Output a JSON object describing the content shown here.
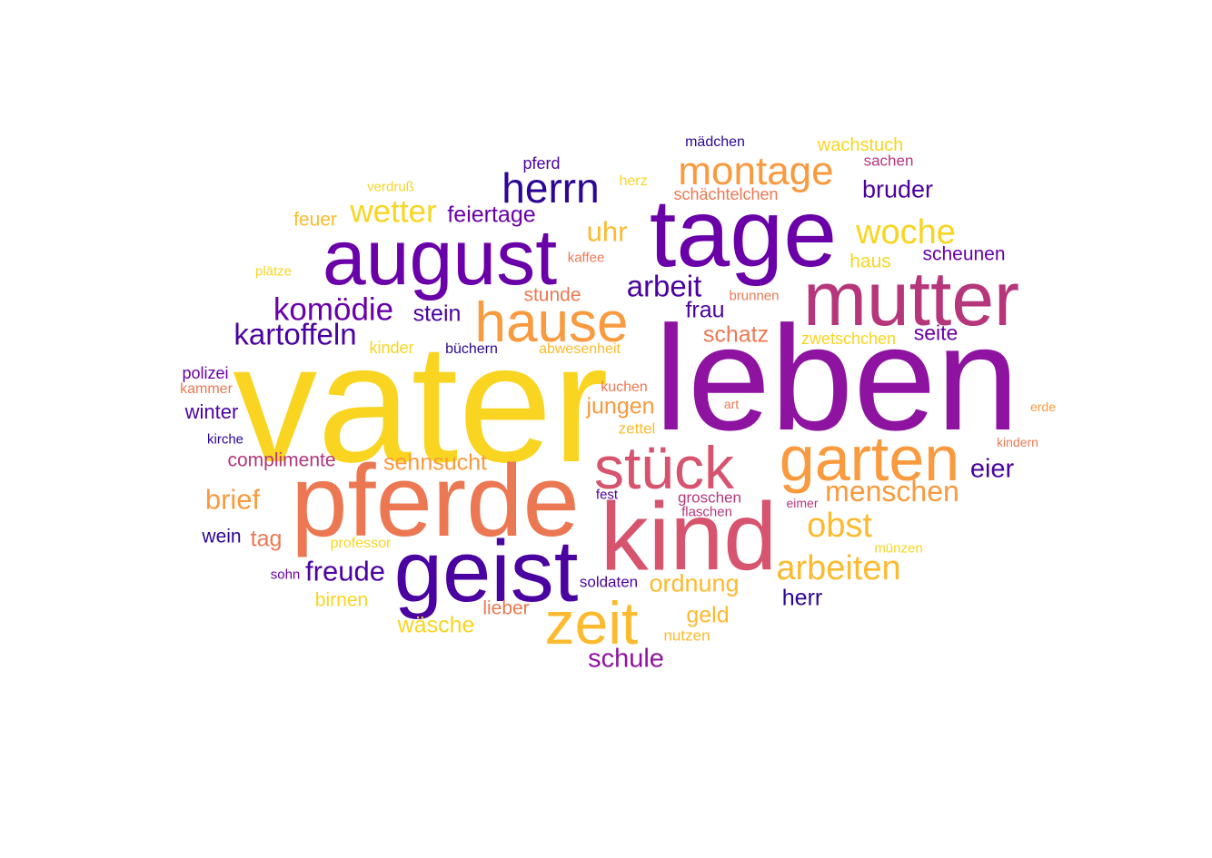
{
  "palette": {
    "yellow": "#f9d521",
    "gold": "#fcba2f",
    "orange": "#f99a3e",
    "coral": "#ec7853",
    "rose": "#d6546e",
    "magenta": "#b5367a",
    "purple": "#8e13a0",
    "violet": "#6a00a8",
    "indigo": "#4a02a0",
    "navy": "#2c0594"
  },
  "words": [
    {
      "text": "vater",
      "color": "yellow"
    },
    {
      "text": "leben",
      "color": "purple"
    },
    {
      "text": "pferde",
      "color": "coral"
    },
    {
      "text": "kind",
      "color": "rose"
    },
    {
      "text": "tage",
      "color": "violet"
    },
    {
      "text": "geist",
      "color": "indigo"
    },
    {
      "text": "august",
      "color": "violet"
    },
    {
      "text": "mutter",
      "color": "magenta"
    },
    {
      "text": "zeit",
      "color": "gold"
    },
    {
      "text": "garten",
      "color": "orange"
    },
    {
      "text": "stück",
      "color": "rose"
    },
    {
      "text": "hause",
      "color": "orange"
    },
    {
      "text": "montage",
      "color": "orange"
    },
    {
      "text": "herrn",
      "color": "navy"
    },
    {
      "text": "woche",
      "color": "yellow"
    },
    {
      "text": "menschen",
      "color": "orange"
    },
    {
      "text": "obst",
      "color": "gold"
    },
    {
      "text": "arbeiten",
      "color": "gold"
    },
    {
      "text": "wetter",
      "color": "yellow"
    },
    {
      "text": "komödie",
      "color": "violet"
    },
    {
      "text": "kartoffeln",
      "color": "indigo"
    },
    {
      "text": "arbeit",
      "color": "indigo"
    },
    {
      "text": "freude",
      "color": "indigo"
    },
    {
      "text": "eier",
      "color": "indigo"
    },
    {
      "text": "uhr",
      "color": "gold"
    },
    {
      "text": "brief",
      "color": "orange"
    },
    {
      "text": "bruder",
      "color": "indigo"
    },
    {
      "text": "feiertage",
      "color": "violet"
    },
    {
      "text": "sehnsucht",
      "color": "orange"
    },
    {
      "text": "schule",
      "color": "purple"
    },
    {
      "text": "ordnung",
      "color": "gold"
    },
    {
      "text": "stein",
      "color": "indigo"
    },
    {
      "text": "frau",
      "color": "indigo"
    },
    {
      "text": "schatz",
      "color": "coral"
    },
    {
      "text": "seite",
      "color": "violet"
    },
    {
      "text": "geld",
      "color": "gold"
    },
    {
      "text": "herr",
      "color": "navy"
    },
    {
      "text": "jungen",
      "color": "orange"
    },
    {
      "text": "wäsche",
      "color": "yellow"
    },
    {
      "text": "tag",
      "color": "coral"
    },
    {
      "text": "stunde",
      "color": "coral"
    },
    {
      "text": "scheunen",
      "color": "violet"
    },
    {
      "text": "wachstuch",
      "color": "yellow"
    },
    {
      "text": "winter",
      "color": "indigo"
    },
    {
      "text": "complimente",
      "color": "magenta"
    },
    {
      "text": "haus",
      "color": "yellow"
    },
    {
      "text": "feuer",
      "color": "gold"
    },
    {
      "text": "wein",
      "color": "navy"
    },
    {
      "text": "lieber",
      "color": "coral"
    },
    {
      "text": "birnen",
      "color": "yellow"
    },
    {
      "text": "schächtelchen",
      "color": "coral"
    },
    {
      "text": "zwetschchen",
      "color": "yellow"
    },
    {
      "text": "pferd",
      "color": "indigo"
    },
    {
      "text": "polizei",
      "color": "violet"
    },
    {
      "text": "mädchen",
      "color": "navy"
    },
    {
      "text": "kinder",
      "color": "yellow"
    },
    {
      "text": "soldaten",
      "color": "indigo"
    },
    {
      "text": "nutzen",
      "color": "gold"
    },
    {
      "text": "sachen",
      "color": "magenta"
    },
    {
      "text": "zettel",
      "color": "gold"
    },
    {
      "text": "groschen",
      "color": "magenta"
    },
    {
      "text": "abwesenheit",
      "color": "gold"
    },
    {
      "text": "büchern",
      "color": "navy"
    },
    {
      "text": "kuchen",
      "color": "coral"
    },
    {
      "text": "professor",
      "color": "yellow"
    },
    {
      "text": "kammer",
      "color": "coral"
    },
    {
      "text": "kirche",
      "color": "navy"
    },
    {
      "text": "herz",
      "color": "yellow"
    },
    {
      "text": "kaffee",
      "color": "coral"
    },
    {
      "text": "brunnen",
      "color": "coral"
    },
    {
      "text": "verdruß",
      "color": "yellow"
    },
    {
      "text": "plätze",
      "color": "yellow"
    },
    {
      "text": "münzen",
      "color": "yellow"
    },
    {
      "text": "sohn",
      "color": "violet"
    },
    {
      "text": "fest",
      "color": "indigo"
    },
    {
      "text": "flaschen",
      "color": "magenta"
    },
    {
      "text": "eimer",
      "color": "magenta"
    },
    {
      "text": "kindern",
      "color": "coral"
    },
    {
      "text": "erde",
      "color": "orange"
    },
    {
      "text": "art",
      "color": "coral"
    }
  ]
}
